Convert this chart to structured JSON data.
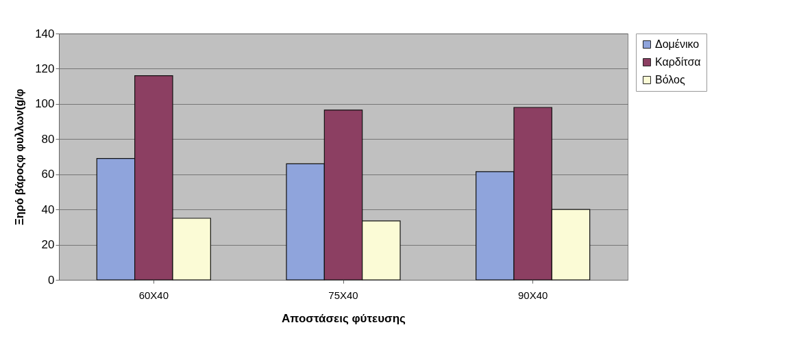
{
  "chart_data": {
    "type": "bar",
    "xlabel": "Αποστάσεις φύτευσης",
    "ylabel": "Ξηρό βάροςφ φυλλων(g/φ",
    "categories": [
      "60X40",
      "75X40",
      "90X40"
    ],
    "series": [
      {
        "name": "Δομένικο",
        "color": "#8fa4dc",
        "values": [
          69,
          66,
          61.5
        ]
      },
      {
        "name": "Καρδίτσα",
        "color": "#8c3f62",
        "values": [
          116,
          96.5,
          98
        ]
      },
      {
        "name": "Βόλος",
        "color": "#fbfbd6",
        "values": [
          35,
          33.5,
          40
        ]
      }
    ],
    "ylim": [
      0,
      140
    ],
    "yticks": [
      0,
      20,
      40,
      60,
      80,
      100,
      120,
      140
    ],
    "grid": "y",
    "legend": "right"
  }
}
